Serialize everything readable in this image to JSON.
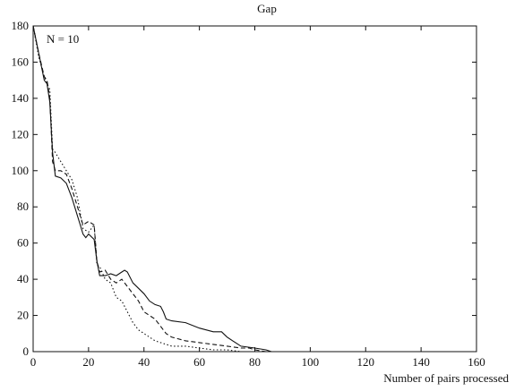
{
  "chart_data": {
    "type": "line",
    "title": "Gap",
    "xlabel": "Number of pairs processed",
    "ylabel": "",
    "annotation": "N = 10",
    "xlim": [
      0,
      160
    ],
    "ylim": [
      0,
      180
    ],
    "xticks": [
      0,
      20,
      40,
      60,
      80,
      100,
      120,
      140,
      160
    ],
    "yticks": [
      0,
      20,
      40,
      60,
      80,
      100,
      120,
      140,
      160,
      180
    ],
    "grid": false,
    "series": [
      {
        "style": "solid",
        "x": [
          0,
          2,
          4,
          5,
          6,
          7,
          8,
          10,
          12,
          14,
          16,
          17,
          18,
          19,
          20,
          22,
          23,
          24,
          26,
          28,
          30,
          32,
          33,
          34,
          36,
          38,
          40,
          42,
          44,
          46,
          47,
          48,
          50,
          55,
          60,
          65,
          68,
          70,
          72,
          75,
          80,
          84,
          86,
          90,
          100,
          160
        ],
        "y": [
          180,
          165,
          150,
          148,
          138,
          110,
          97,
          96,
          93,
          85,
          75,
          70,
          65,
          63,
          65,
          62,
          50,
          42,
          42,
          43,
          42,
          44,
          45,
          44,
          38,
          35,
          32,
          28,
          26,
          25,
          22,
          18,
          17,
          16,
          13,
          11,
          11,
          8,
          6,
          3,
          2,
          1,
          0,
          0,
          0,
          0
        ]
      },
      {
        "style": "dashed",
        "x": [
          0,
          2,
          4,
          5,
          6,
          7,
          8,
          10,
          12,
          14,
          16,
          18,
          20,
          22,
          23,
          24,
          26,
          28,
          30,
          32,
          34,
          36,
          38,
          40,
          42,
          44,
          46,
          48,
          50,
          55,
          60,
          65,
          70,
          75,
          78,
          80,
          84,
          86,
          100,
          160
        ],
        "y": [
          180,
          165,
          152,
          150,
          140,
          105,
          100,
          100,
          98,
          90,
          80,
          70,
          72,
          70,
          50,
          44,
          45,
          40,
          38,
          40,
          36,
          32,
          28,
          22,
          20,
          18,
          14,
          10,
          8,
          6,
          5,
          4,
          3,
          2,
          2,
          1,
          0,
          0,
          0,
          0
        ]
      },
      {
        "style": "dotted",
        "x": [
          0,
          2,
          4,
          5,
          6,
          7,
          8,
          10,
          12,
          14,
          16,
          18,
          20,
          22,
          23,
          24,
          26,
          28,
          30,
          32,
          34,
          36,
          38,
          40,
          42,
          44,
          46,
          48,
          50,
          55,
          60,
          65,
          70,
          75,
          80,
          84,
          100,
          160
        ],
        "y": [
          180,
          163,
          152,
          148,
          145,
          112,
          110,
          105,
          100,
          95,
          85,
          68,
          66,
          70,
          48,
          47,
          40,
          38,
          30,
          28,
          22,
          16,
          12,
          10,
          8,
          6,
          5,
          4,
          3,
          3,
          2,
          1,
          1,
          0,
          0,
          0,
          0,
          0
        ]
      }
    ]
  }
}
